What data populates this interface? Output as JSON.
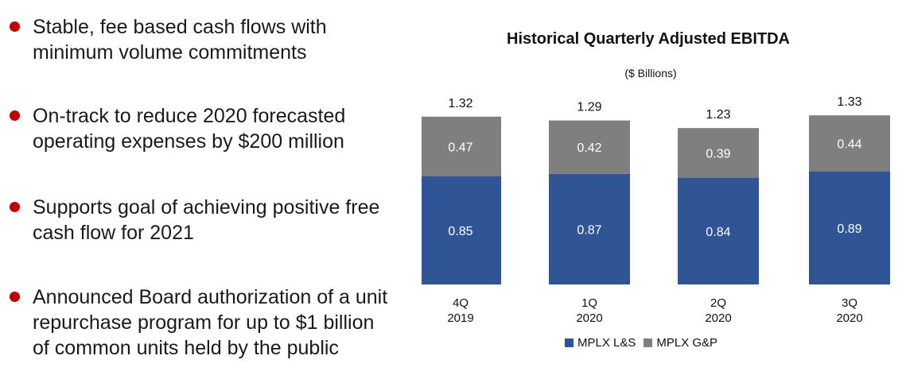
{
  "bullets": [
    "Stable, fee based cash flows with\nminimum volume commitments",
    "On-track to reduce 2020 forecasted\noperating expenses by $200 million",
    "Supports goal of achieving positive free\ncash flow for 2021",
    "Announced Board authorization of a unit\nrepurchase program for up to $1 billion\nof common units held by the public"
  ],
  "colors": {
    "bullet": "#c00000",
    "ls": "#2f5597",
    "gp": "#7f7f7f"
  },
  "chart_data": {
    "type": "bar",
    "stacked": true,
    "title": "Historical Quarterly Adjusted EBITDA",
    "subtitle": "($ Billions)",
    "categories": [
      "4Q\n2019",
      "1Q\n2020",
      "2Q\n2020",
      "3Q\n2020"
    ],
    "series": [
      {
        "name": "MPLX L&S",
        "values": [
          0.85,
          0.87,
          0.84,
          0.89
        ]
      },
      {
        "name": "MPLX G&P",
        "values": [
          0.47,
          0.42,
          0.39,
          0.44
        ]
      }
    ],
    "totals": [
      "1.32",
      "1.29",
      "1.23",
      "1.33"
    ],
    "segment_labels": [
      [
        "0.85",
        "0.87",
        "0.84",
        "0.89"
      ],
      [
        "0.47",
        "0.42",
        "0.39",
        "0.44"
      ]
    ],
    "ylim": [
      0,
      1.4
    ],
    "grid": false,
    "legend": "bottom"
  }
}
